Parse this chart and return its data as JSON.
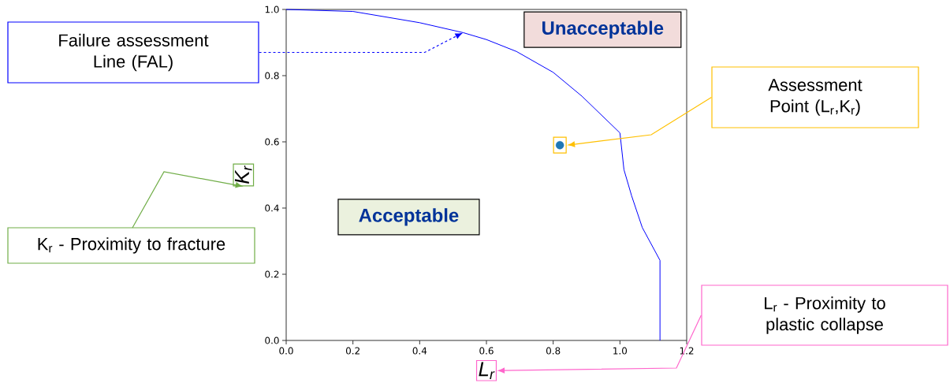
{
  "chart_data": {
    "type": "line",
    "xlabel": "L$_{r}$",
    "ylabel": "K$_{r}$",
    "xlim": [
      0,
      1.2
    ],
    "ylim": [
      0,
      1.0
    ],
    "xticks": [
      {
        "value": 0,
        "label": "0.0"
      },
      0.2,
      0.4,
      0.6,
      0.8,
      {
        "value": 1.0,
        "label": "1.0"
      },
      1.2
    ],
    "yticks": [
      {
        "value": 0,
        "label": "0.0"
      },
      0.2,
      0.4,
      0.6,
      0.8,
      {
        "value": 1.0,
        "label": "1.0"
      }
    ],
    "series": [
      {
        "color": "#0000ff",
        "x": [
          0,
          0.2,
          0.4,
          0.53,
          0.6,
          0.69,
          0.8,
          0.886,
          1.0,
          1.012,
          1.035,
          1.067,
          1.12,
          1.12
        ],
        "values": [
          1.0,
          0.994,
          0.96,
          0.93,
          0.909,
          0.873,
          0.81,
          0.738,
          0.627,
          0.516,
          0.437,
          0.341,
          0.242,
          0
        ]
      },
      {
        "type": "scatter",
        "color": "#1f77b4",
        "marker": "circle",
        "x": [
          0.82
        ],
        "values": [
          0.59
        ]
      }
    ],
    "annotations": [
      "Failure assessment Line (FAL)",
      "Assessment Point (L$_{r}$,K$_{r}$)",
      "Unacceptable",
      "Acceptable",
      "K$_{r}$ - Proximity to fracture",
      "L$_{r}$ - Proximity to plastic collapse"
    ]
  }
}
